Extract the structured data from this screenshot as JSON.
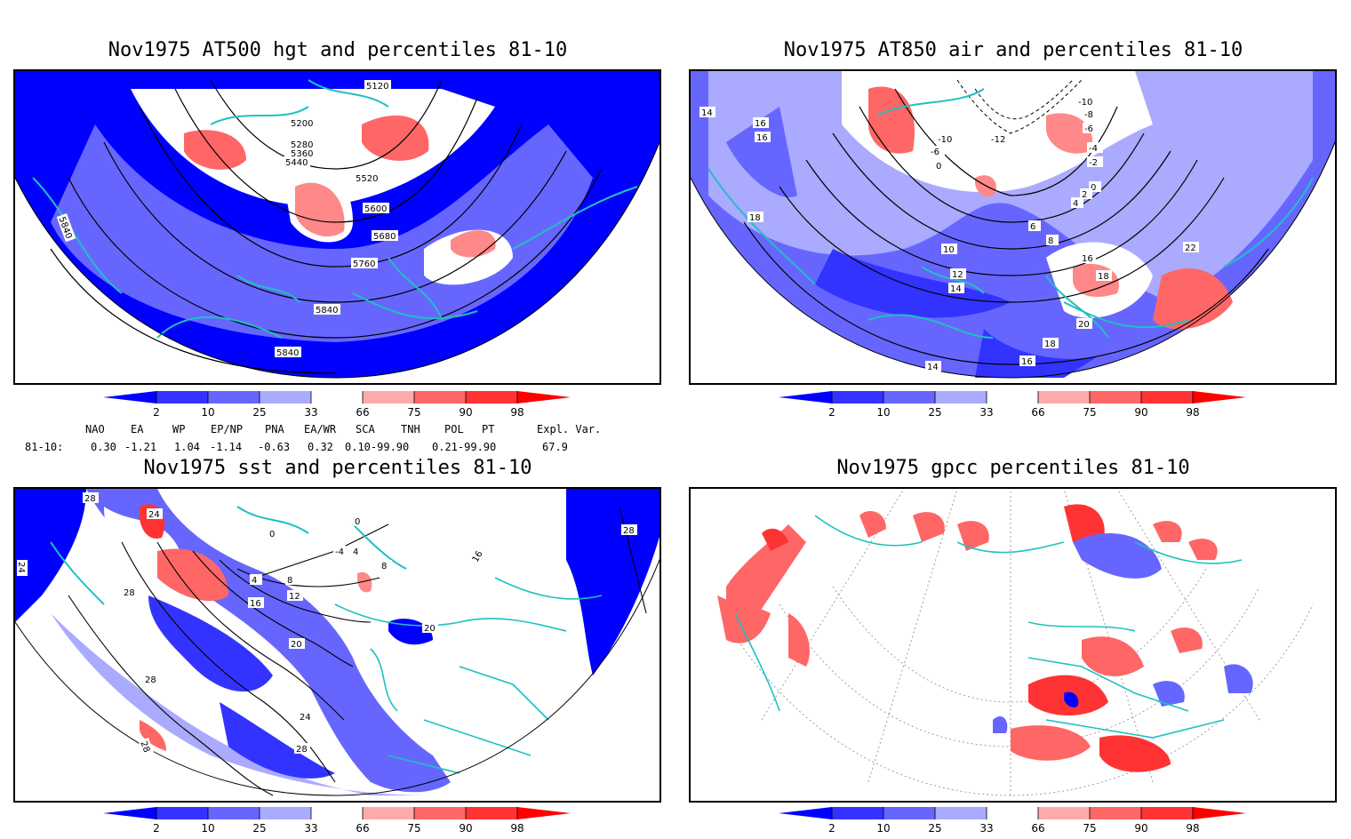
{
  "panels": [
    {
      "title": "Nov1975 AT500 hgt and percentiles 81-10",
      "contour_labels": [
        "5120",
        "5200",
        "5280",
        "5360",
        "5440",
        "5520",
        "5600",
        "5680",
        "5760",
        "5840",
        "5840",
        "5840"
      ]
    },
    {
      "title": "Nov1975 AT850 air and percentiles 81-10",
      "contour_labels": [
        "14",
        "16",
        "16",
        "18",
        "-10",
        "-8",
        "-6",
        "-4",
        "-2",
        "0",
        "2",
        "4",
        "6",
        "8",
        "10",
        "12",
        "14",
        "16",
        "18",
        "20",
        "22",
        "18",
        "16",
        "14",
        "-12",
        "-10",
        "-6",
        "0"
      ]
    },
    {
      "title": "Nov1975 sst and percentiles 81-10",
      "contour_labels": [
        "28",
        "24",
        "24",
        "28",
        "0",
        "0",
        "4",
        "8",
        "12",
        "16",
        "20",
        "20",
        "24",
        "28",
        "28",
        "28",
        "-4",
        "4",
        "8",
        "16",
        "28"
      ]
    },
    {
      "title": "Nov1975 gpcc percentiles 81-10",
      "contour_labels": []
    }
  ],
  "colorbar": {
    "ticks": [
      "2",
      "10",
      "25",
      "33",
      "66",
      "75",
      "90",
      "98"
    ],
    "colors": {
      "lt2": "#0000ff",
      "2_10": "#3333ff",
      "10_25": "#6666ff",
      "25_33": "#aaaaff",
      "33_66": "#ffffff",
      "66_75": "#ffaaaa",
      "75_90": "#ff6666",
      "90_98": "#ff3333",
      "gt98": "#ff0000"
    }
  },
  "indices": {
    "header": [
      "NAO",
      "EA",
      "WP",
      "EP/NP",
      "PNA",
      "EA/WR",
      "SCA",
      "TNH",
      "POL",
      "PT",
      "Expl. Var."
    ],
    "row_label": "81-10:",
    "values": [
      "0.30",
      "-1.21",
      "1.04",
      "-1.14",
      "-0.63",
      "0.32",
      "0.10-99.90",
      "0.21-99.90",
      "67.9"
    ]
  },
  "colors": {
    "coast": "#20c0c0",
    "contour": "#000000"
  }
}
